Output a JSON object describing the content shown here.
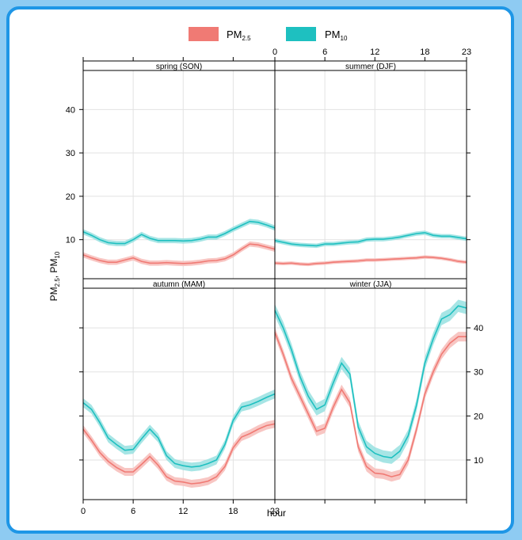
{
  "chart_data": {
    "type": "line",
    "xlabel": "hour",
    "ylabel": "PM2.5, PM10",
    "ylabel_parts": {
      "pm25_main": "PM",
      "pm25_sub": "2.5",
      "sep": ", ",
      "pm10_main": "PM",
      "pm10_sub": "10"
    },
    "legend": [
      {
        "main": "PM",
        "sub": "2.5",
        "color": "#f07a74"
      },
      {
        "main": "PM",
        "sub": "10",
        "color": "#1ec0c0"
      }
    ],
    "legend_position": "top",
    "x_ticks": [
      0,
      6,
      12,
      18,
      23
    ],
    "grid": true,
    "colors": {
      "pm25": "#f07a74",
      "pm10": "#1ec0c0",
      "pm25_band": "#f7bcb8",
      "pm10_band": "#98e0e0"
    },
    "panels": [
      {
        "title": "spring (SON)",
        "ylim": [
          1,
          49
        ],
        "y_ticks": [
          10,
          20,
          30,
          40
        ],
        "series": [
          {
            "key": "pm25",
            "band": 0.6,
            "values": [
              6.5,
              5.8,
              5.2,
              4.8,
              4.8,
              5.3,
              5.8,
              5.0,
              4.6,
              4.6,
              4.7,
              4.6,
              4.5,
              4.6,
              4.8,
              5.1,
              5.2,
              5.6,
              6.5,
              7.8,
              9.0,
              8.8,
              8.3,
              7.8
            ]
          },
          {
            "key": "pm10",
            "band": 0.6,
            "values": [
              11.8,
              11.0,
              10.0,
              9.3,
              9.1,
              9.1,
              10.0,
              11.2,
              10.3,
              9.8,
              9.8,
              9.8,
              9.7,
              9.8,
              10.1,
              10.6,
              10.6,
              11.4,
              12.4,
              13.3,
              14.2,
              14.0,
              13.4,
              12.7
            ]
          }
        ]
      },
      {
        "title": "summer (DJF)",
        "ylim": [
          1,
          49
        ],
        "y_ticks": [
          10,
          20,
          30,
          40
        ],
        "series": [
          {
            "key": "pm25",
            "band": 0.4,
            "values": [
              4.6,
              4.5,
              4.6,
              4.4,
              4.3,
              4.5,
              4.6,
              4.8,
              4.9,
              5.0,
              5.1,
              5.3,
              5.3,
              5.4,
              5.5,
              5.6,
              5.7,
              5.8,
              6.0,
              5.9,
              5.7,
              5.4,
              5.0,
              4.8
            ]
          },
          {
            "key": "pm10",
            "band": 0.5,
            "values": [
              9.8,
              9.4,
              9.0,
              8.8,
              8.7,
              8.6,
              9.0,
              9.0,
              9.2,
              9.4,
              9.5,
              10.0,
              10.1,
              10.1,
              10.3,
              10.6,
              11.0,
              11.4,
              11.6,
              11.0,
              10.8,
              10.8,
              10.5,
              10.2
            ]
          }
        ]
      },
      {
        "title": "autumn (MAM)",
        "ylim": [
          1,
          49
        ],
        "y_ticks": [
          10,
          20,
          30,
          40
        ],
        "series": [
          {
            "key": "pm25",
            "band": 0.9,
            "values": [
              17.0,
              14.5,
              11.7,
              9.7,
              8.3,
              7.3,
              7.3,
              9.0,
              10.8,
              8.8,
              6.2,
              5.2,
              5.0,
              4.6,
              4.8,
              5.2,
              6.2,
              8.5,
              12.8,
              15.2,
              16.0,
              17.0,
              17.8,
              18.2
            ]
          },
          {
            "key": "pm10",
            "band": 1.0,
            "values": [
              23.0,
              21.5,
              18.5,
              15.0,
              13.5,
              12.2,
              12.4,
              14.8,
              17.0,
              15.0,
              11.0,
              9.2,
              8.7,
              8.4,
              8.6,
              9.2,
              10.0,
              13.5,
              19.0,
              22.0,
              22.5,
              23.3,
              24.2,
              25.0
            ]
          }
        ]
      },
      {
        "title": "winter (JJA)",
        "ylim": [
          1,
          49
        ],
        "y_ticks": [
          10,
          20,
          30,
          40
        ],
        "series": [
          {
            "key": "pm25",
            "band": 1.1,
            "values": [
              39.0,
              34.0,
              28.5,
              24.5,
              20.5,
              16.5,
              17.2,
              22.0,
              26.0,
              23.0,
              13.0,
              8.5,
              7.0,
              6.8,
              6.2,
              6.7,
              10.0,
              17.0,
              25.0,
              30.0,
              34.0,
              36.5,
              38.0,
              38.0
            ]
          },
          {
            "key": "pm10",
            "band": 1.4,
            "values": [
              44.0,
              40.0,
              35.0,
              29.0,
              24.5,
              21.5,
              22.5,
              27.5,
              32.0,
              29.5,
              17.5,
              13.0,
              11.5,
              10.8,
              10.5,
              12.0,
              15.5,
              22.5,
              32.0,
              37.5,
              42.0,
              43.0,
              45.0,
              44.5
            ]
          }
        ]
      }
    ]
  }
}
